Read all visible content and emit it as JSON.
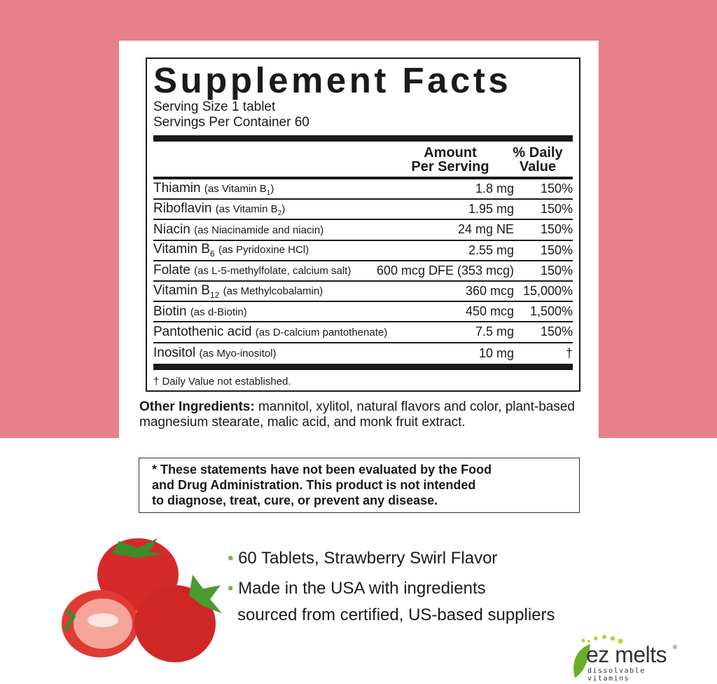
{
  "colors": {
    "background": "#e8808b",
    "accent": "#8cc63f"
  },
  "facts": {
    "title": "Supplement Facts",
    "serving_size": "Serving Size 1 tablet",
    "servings_per_container": "Servings Per Container 60",
    "col_amount": [
      "Amount",
      "Per Serving"
    ],
    "col_dv": [
      "% Daily",
      "Value"
    ],
    "rows": [
      {
        "name": "Thiamin",
        "desc": "(as Vitamin B",
        "sub": "1",
        "desc_end": ")",
        "amount": "1.8 mg",
        "dv": "150%"
      },
      {
        "name": "Riboflavin",
        "desc": "(as Vitamin B",
        "sub": "2",
        "desc_end": ")",
        "amount": "1.95 mg",
        "dv": "150%"
      },
      {
        "name": "Niacin",
        "desc": "(as Niacinamide and niacin)",
        "amount": "24 mg NE",
        "dv": "150%"
      },
      {
        "name": "Vitamin B",
        "name_sub": "6",
        "desc": "(as Pyridoxine HCl)",
        "amount": "2.55 mg",
        "dv": "150%"
      },
      {
        "name": "Folate",
        "desc": "(as L-5-methylfolate, calcium salt)",
        "amount": "600 mcg DFE (353 mcg)",
        "dv": "150%"
      },
      {
        "name": "Vitamin B",
        "name_sub": "12",
        "desc": "(as Methylcobalamin)",
        "amount": "360 mcg",
        "dv": "15,000%"
      },
      {
        "name": "Biotin",
        "desc": "(as d-Biotin)",
        "amount": "450 mcg",
        "dv": "1,500%"
      },
      {
        "name": "Pantothenic acid",
        "desc": "(as D-calcium pantothenate)",
        "amount": "7.5 mg",
        "dv": "150%"
      },
      {
        "name": "Inositol",
        "desc": "(as Myo-inositol)",
        "amount": "10 mg",
        "dv": "†"
      }
    ],
    "footnote": "† Daily Value not established."
  },
  "other_ingredients": {
    "label": "Other Ingredients:",
    "text": " mannitol, xylitol, natural flavors and color, plant-based magnesium stearate, malic acid, and monk fruit extract."
  },
  "disclaimer": [
    "* These statements have not been evaluated by the Food",
    "and Drug Administration. This product is not intended",
    "to diagnose, treat, cure, or prevent any disease."
  ],
  "bullets": [
    {
      "dot": "•",
      "lines": [
        "60 Tablets, Strawberry Swirl Flavor"
      ]
    },
    {
      "dot": "•",
      "lines": [
        "Made in the USA with ingredients",
        "sourced from certified, US-based suppliers"
      ]
    }
  ],
  "logo": {
    "brand": "ez melts",
    "tagline": "dissolvable vitamins",
    "mark": "®"
  }
}
